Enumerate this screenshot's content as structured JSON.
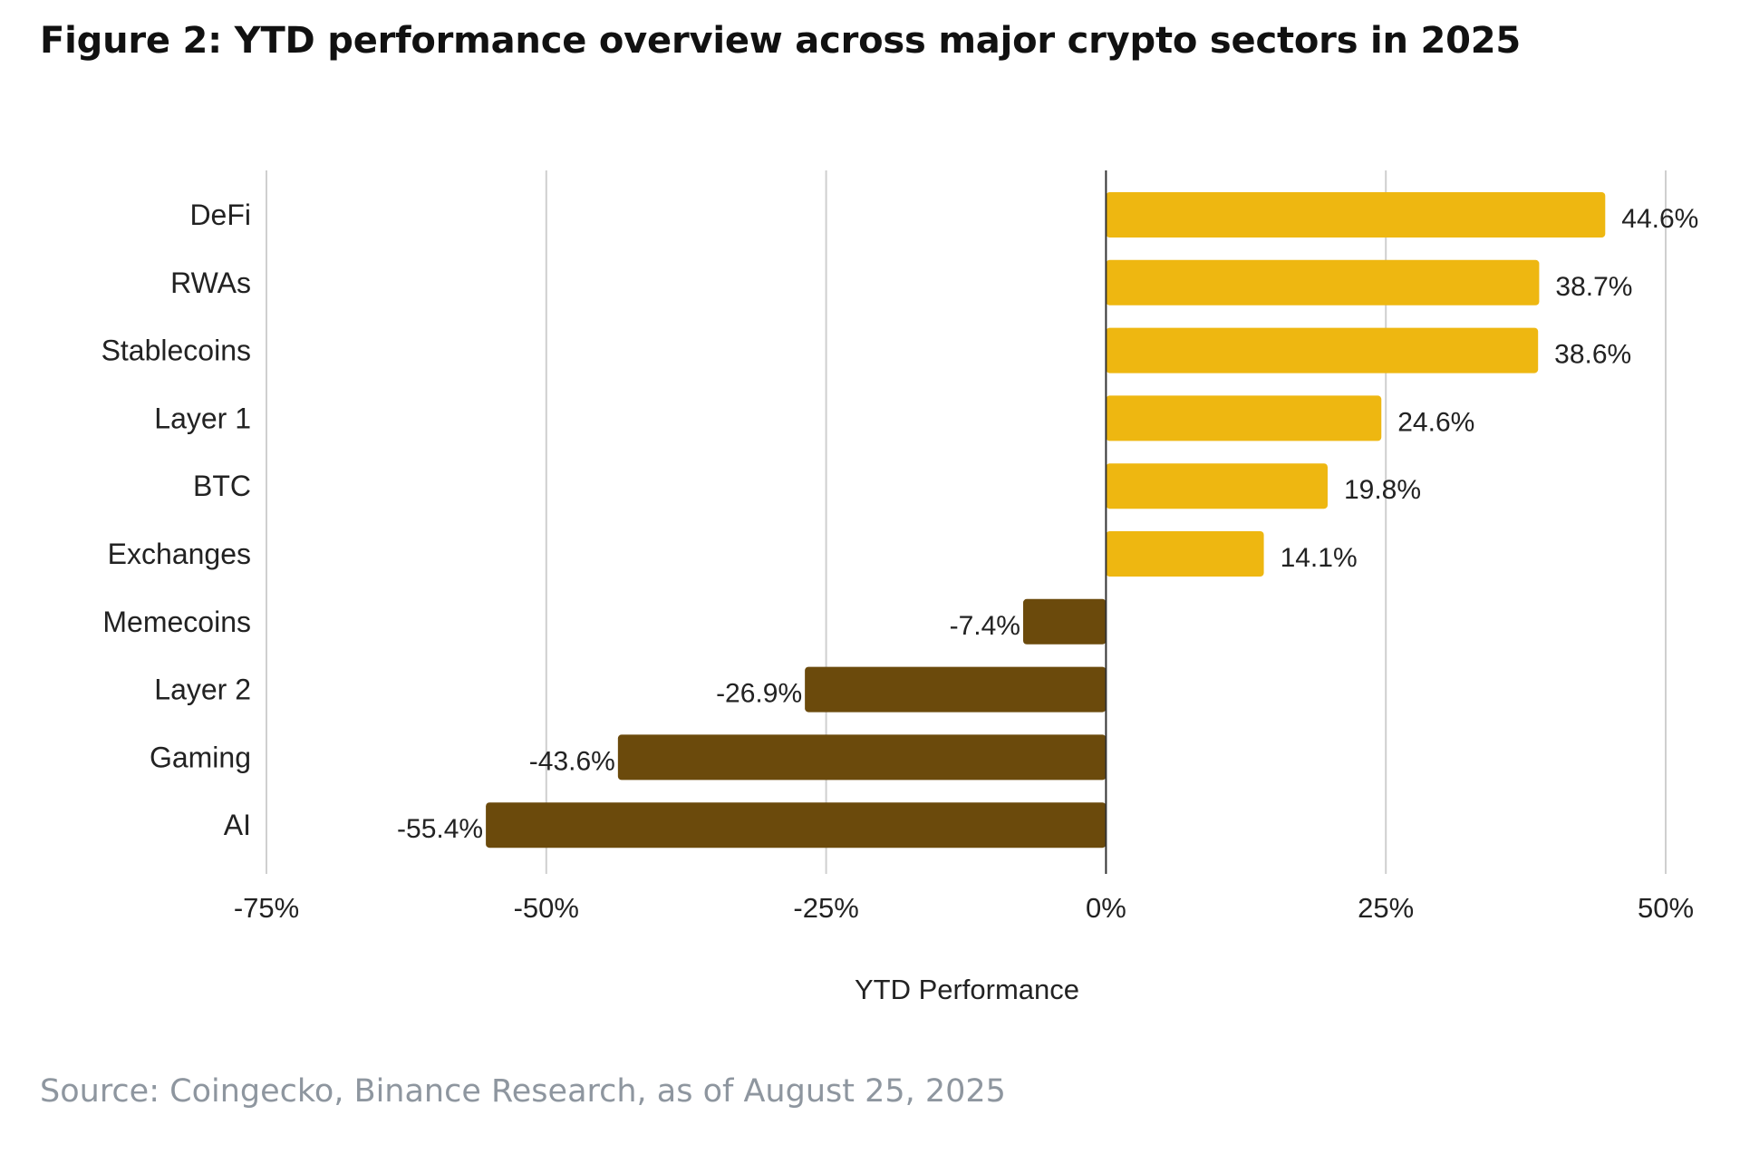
{
  "figure": {
    "title": "Figure 2: YTD performance overview across major crypto sectors in 2025",
    "source": "Source: Coingecko, Binance Research, as of August 25, 2025"
  },
  "colors": {
    "positive": "#eeb711",
    "negative": "#6b4a0c",
    "grid": "#cfcfcf",
    "zero_line": "#333333",
    "source_text": "#8e969f"
  },
  "chart_data": {
    "type": "bar",
    "orientation": "horizontal",
    "title": "Figure 2: YTD performance overview across major crypto sectors in 2025",
    "xlabel": "YTD Performance",
    "ylabel": "",
    "categories": [
      "DeFi",
      "RWAs",
      "Stablecoins",
      "Layer 1",
      "BTC",
      "Exchanges",
      "Memecoins",
      "Layer 2",
      "Gaming",
      "AI"
    ],
    "values": [
      44.6,
      38.7,
      38.6,
      24.6,
      19.8,
      14.1,
      -7.4,
      -26.9,
      -43.6,
      -55.4
    ],
    "data_labels": [
      "44.6%",
      "38.7%",
      "38.6%",
      "24.6%",
      "19.8%",
      "14.1%",
      "-7.4%",
      "-26.9%",
      "-43.6%",
      "-55.4%"
    ],
    "xlim": [
      -75,
      50
    ],
    "xticks": [
      -75,
      -50,
      -25,
      0,
      25,
      50
    ],
    "xtick_labels": [
      "-75%",
      "-50%",
      "-25%",
      "0%",
      "25%",
      "50%"
    ],
    "grid": "vertical",
    "legend": "none"
  }
}
